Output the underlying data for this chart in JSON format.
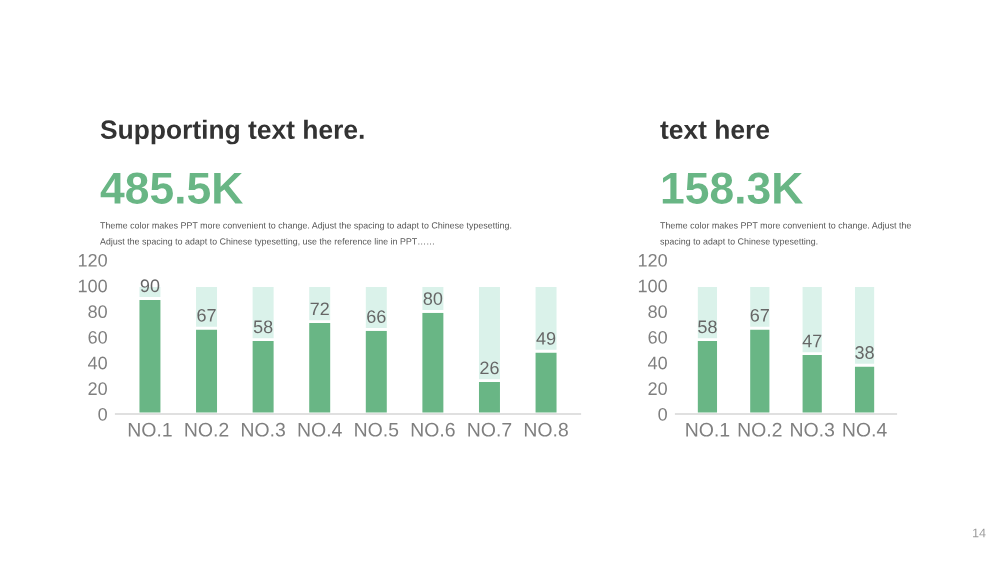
{
  "chart_data": [
    {
      "type": "bar",
      "title": "Supporting text here.",
      "subtitle": "485.5K",
      "annotations": [
        "Theme color makes PPT more convenient to change. Adjust the spacing to adapt to Chinese typesetting. Adjust the spacing to adapt to Chinese typesetting, use the reference line in PPT……"
      ],
      "categories": [
        "NO.1",
        "NO.2",
        "NO.3",
        "NO.4",
        "NO.5",
        "NO.6",
        "NO.7",
        "NO.8"
      ],
      "stacked": true,
      "ylim": [
        0,
        120
      ],
      "yticks": [
        0,
        20,
        40,
        60,
        80,
        100,
        120
      ],
      "grid": false,
      "legend": false,
      "series": [
        {
          "color": "#69b685",
          "values": [
            90,
            67,
            58,
            72,
            66,
            80,
            26,
            49
          ],
          "value_labels": [
            "90",
            "67",
            "58",
            "72",
            "66",
            "80",
            "26",
            "49"
          ]
        },
        {
          "color": "#daf2ea",
          "values": [
            10,
            33,
            42,
            28,
            34,
            20,
            74,
            51
          ]
        }
      ]
    },
    {
      "type": "bar",
      "title": "text here",
      "subtitle": "158.3K",
      "annotations": [
        "Theme color makes PPT more convenient to change. Adjust the spacing to adapt to Chinese typesetting.",
        "14"
      ],
      "categories": [
        "NO.1",
        "NO.2",
        "NO.3",
        "NO.4"
      ],
      "stacked": true,
      "ylim": [
        0,
        120
      ],
      "yticks": [
        0,
        20,
        40,
        60,
        80,
        100,
        120
      ],
      "grid": false,
      "legend": false,
      "series": [
        {
          "color": "#69b685",
          "values": [
            58,
            67,
            47,
            38
          ],
          "value_labels": [
            "58",
            "67",
            "47",
            "38"
          ]
        },
        {
          "color": "#daf2ea",
          "values": [
            42,
            33,
            53,
            62
          ]
        }
      ]
    }
  ]
}
